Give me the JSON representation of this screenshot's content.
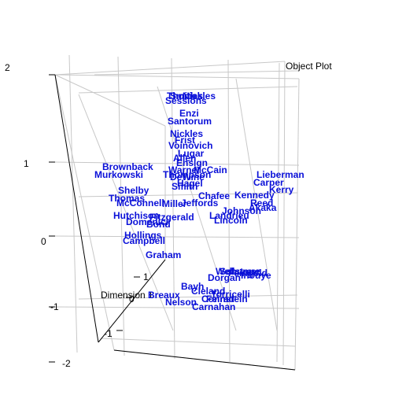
{
  "chart_data": {
    "type": "scatter",
    "title": "Object Plot",
    "axis_label": "Dimension 1",
    "label_color": "#0a10d8",
    "grid_color": "#c8c8c8",
    "ticks": {
      "left_axis": [
        "2",
        "1",
        "0",
        "-1",
        "-2"
      ],
      "inner_axis": [
        "1",
        "0",
        "-1"
      ]
    },
    "points": [
      {
        "name": "Thomas"
      },
      {
        "name": "Smith"
      },
      {
        "name": "Nickles"
      },
      {
        "name": "Sessions"
      },
      {
        "name": "Enzi"
      },
      {
        "name": "Santorum"
      },
      {
        "name": "Nickles"
      },
      {
        "name": "Voinovich"
      },
      {
        "name": "Frist"
      },
      {
        "name": "Lugar"
      },
      {
        "name": "Allen"
      },
      {
        "name": "Ensign"
      },
      {
        "name": "Warner"
      },
      {
        "name": "McCain"
      },
      {
        "name": "Thompson"
      },
      {
        "name": "DeWine"
      },
      {
        "name": "Hagel"
      },
      {
        "name": "Smith"
      },
      {
        "name": "Brownback"
      },
      {
        "name": "Murkowski"
      },
      {
        "name": "Shelby"
      },
      {
        "name": "Thomas"
      },
      {
        "name": "McConnell"
      },
      {
        "name": "Jeffords"
      },
      {
        "name": "Miller"
      },
      {
        "name": "Chafee"
      },
      {
        "name": "Johnson"
      },
      {
        "name": "Landrieu"
      },
      {
        "name": "Lincoln"
      },
      {
        "name": "Lieberman"
      },
      {
        "name": "Carper"
      },
      {
        "name": "Kerry"
      },
      {
        "name": "Kennedy"
      },
      {
        "name": "Akaka"
      },
      {
        "name": "Reed"
      },
      {
        "name": "Hutchison"
      },
      {
        "name": "Fitzgerald"
      },
      {
        "name": "Domenici"
      },
      {
        "name": "Bond"
      },
      {
        "name": "Hollings"
      },
      {
        "name": "Campbell"
      },
      {
        "name": "Graham"
      },
      {
        "name": "Carnahan"
      },
      {
        "name": "Bayh"
      },
      {
        "name": "Cleland"
      },
      {
        "name": "Breaux"
      },
      {
        "name": "Nelson"
      },
      {
        "name": "Feinstein"
      },
      {
        "name": "Dorgan"
      },
      {
        "name": "Inouye"
      },
      {
        "name": "Wellstone"
      },
      {
        "name": "Schumer"
      },
      {
        "name": "Torricelli"
      },
      {
        "name": "Conrad"
      },
      {
        "name": "Feingold"
      }
    ]
  }
}
